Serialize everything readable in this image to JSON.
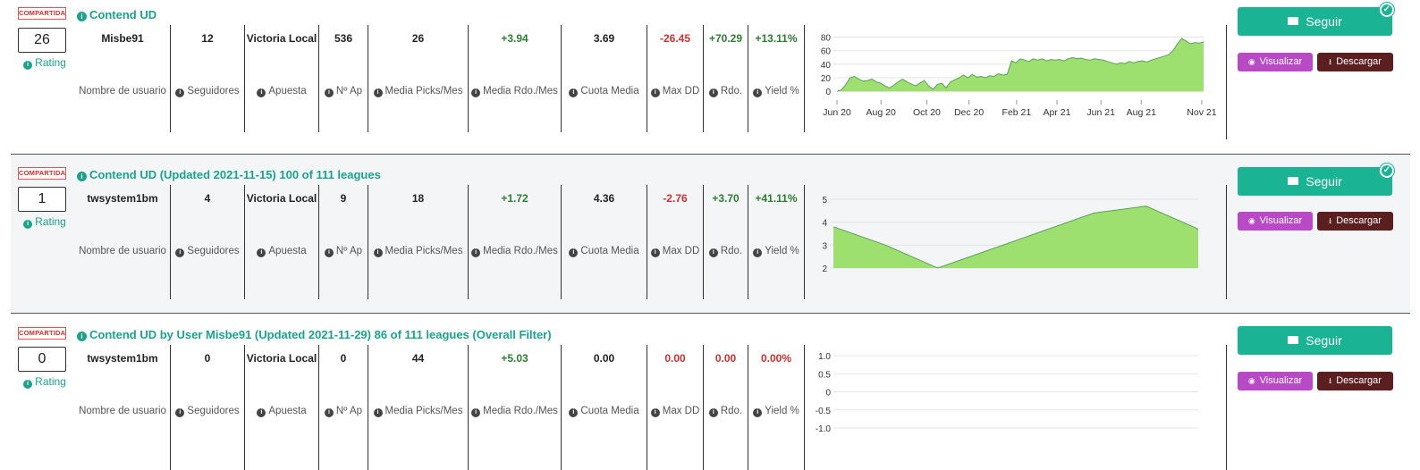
{
  "common": {
    "badge": "COMPARTIDA",
    "rating_label": "Rating",
    "labels": {
      "usuario": "Nombre de usuario",
      "seguidores": "Seguidores",
      "apuesta": "Apuesta",
      "nap": "Nº Ap",
      "picks": "Media Picks/Mes",
      "rdo_mes": "Media Rdo./Mes",
      "cuota": "Cuota Media",
      "maxdd": "Max DD",
      "rdo": "Rdo.",
      "yield": "Yield %"
    },
    "buttons": {
      "seguir": "Seguir",
      "visualizar": "Visualizar",
      "descargar": "Descargar"
    },
    "colors": {
      "teal": "#1ab394",
      "purple": "#b84ac5",
      "maroon": "#5b1f1f",
      "area": "#9de06f"
    },
    "icons": {
      "info": "info-icon",
      "envelope": "envelope-icon",
      "eye": "eye-icon",
      "download": "download-icon",
      "check": "check-icon"
    }
  },
  "cards": [
    {
      "title": "Contend UD",
      "rating": "26",
      "usuario": "Misbe91",
      "seguidores": "12",
      "apuesta": "Victoria Local",
      "nap": "536",
      "picks": "26",
      "rdo_mes": "+3.94",
      "cuota": "3.69",
      "maxdd": "-26.45",
      "rdo": "+70.29",
      "yield": "+13.11%",
      "following": true
    },
    {
      "title": "Contend UD (Updated 2021-11-15) 100 of 111 leagues",
      "rating": "1",
      "usuario": "twsystem1bm",
      "seguidores": "4",
      "apuesta": "Victoria Local",
      "nap": "9",
      "picks": "18",
      "rdo_mes": "+1.72",
      "cuota": "4.36",
      "maxdd": "-2.76",
      "rdo": "+3.70",
      "yield": "+41.11%",
      "following": true
    },
    {
      "title": "Contend UD by User Misbe91 (Updated 2021-11-29) 86 of 111 leagues (Overall Filter)",
      "rating": "0",
      "usuario": "twsystem1bm",
      "seguidores": "0",
      "apuesta": "Victoria Local",
      "nap": "0",
      "picks": "44",
      "rdo_mes": "+5.03",
      "cuota": "0.00",
      "maxdd": "0.00",
      "rdo": "0.00",
      "yield": "0.00%",
      "following": false
    }
  ],
  "chart_data": [
    {
      "type": "area",
      "x_ticks": [
        "Jun 20",
        "Aug 20",
        "Oct 20",
        "Dec 20",
        "Feb 21",
        "Apr 21",
        "Jun 21",
        "Aug 21",
        "Nov 21"
      ],
      "ylim": [
        -5,
        82
      ],
      "y_ticks": [
        0,
        20,
        40,
        60,
        80
      ],
      "grid": true,
      "series": [
        {
          "values": [
            0,
            2,
            10,
            20,
            22,
            18,
            15,
            16,
            18,
            14,
            12,
            8,
            5,
            9,
            14,
            18,
            14,
            11,
            8,
            12,
            16,
            8,
            3,
            10,
            12,
            5,
            14,
            17,
            20,
            24,
            20,
            25,
            21,
            22,
            20,
            23,
            22,
            26,
            24,
            25,
            45,
            42,
            48,
            46,
            44,
            48,
            46,
            48,
            45,
            47,
            46,
            47,
            45,
            48,
            50,
            48,
            49,
            47,
            46,
            48,
            47,
            46,
            44,
            42,
            40,
            42,
            41,
            44,
            42,
            44,
            45,
            43,
            46,
            48,
            50,
            52,
            54,
            60,
            70,
            78,
            74,
            70,
            72,
            71,
            73
          ]
        }
      ]
    },
    {
      "type": "area",
      "ylim": [
        2,
        5
      ],
      "y_ticks": [
        2,
        3,
        4,
        5
      ],
      "grid": true,
      "series": [
        {
          "values": [
            3.8,
            3.0,
            2.0,
            2.8,
            3.6,
            4.4,
            4.7,
            3.7
          ]
        }
      ]
    },
    {
      "type": "line",
      "ylim": [
        -1,
        1
      ],
      "y_ticks": [
        "-1.0",
        "-0.5",
        "0",
        "0.5",
        "1.0"
      ],
      "grid": true,
      "series": []
    }
  ]
}
